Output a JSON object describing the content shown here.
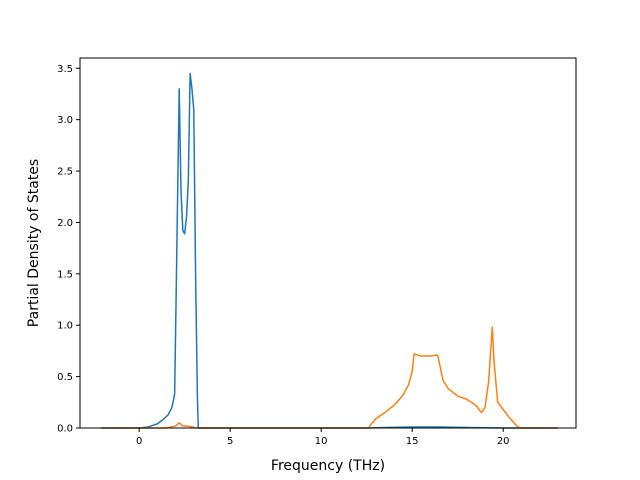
{
  "chart_data": {
    "type": "line",
    "title": "",
    "xlabel": "Frequency (THz)",
    "ylabel": "Partial Density of States",
    "xlim": [
      -3.25,
      24.0
    ],
    "ylim": [
      0,
      3.6
    ],
    "xticks": [
      0,
      5,
      10,
      15,
      20
    ],
    "yticks": [
      0.0,
      0.5,
      1.0,
      1.5,
      2.0,
      2.5,
      3.0,
      3.5
    ],
    "xtick_labels": [
      "0",
      "5",
      "10",
      "15",
      "20"
    ],
    "ytick_labels": [
      "0.0",
      "0.5",
      "1.0",
      "1.5",
      "2.0",
      "2.5",
      "3.0",
      "3.5"
    ],
    "grid": false,
    "legend": "none",
    "series": [
      {
        "color": "#1f77b4",
        "x": [
          -2.1,
          0.0,
          0.5,
          1.0,
          1.3,
          1.6,
          1.8,
          1.95,
          2.05,
          2.2,
          2.3,
          2.4,
          2.5,
          2.6,
          2.7,
          2.8,
          2.9,
          3.0,
          3.1,
          3.2,
          3.25,
          3.3,
          3.35,
          3.5,
          5.0,
          10.0,
          12.6,
          13.5,
          15.0,
          16.5,
          18.0,
          20.0,
          23.0
        ],
        "y": [
          0.0,
          0.0,
          0.01,
          0.04,
          0.08,
          0.13,
          0.2,
          0.33,
          1.5,
          3.3,
          2.3,
          1.92,
          1.89,
          2.05,
          2.4,
          3.45,
          3.3,
          3.1,
          1.5,
          0.3,
          0.0,
          0.0,
          0.0,
          0.0,
          0.0,
          0.0,
          0.0,
          0.005,
          0.01,
          0.01,
          0.005,
          0.0,
          0.0
        ]
      },
      {
        "color": "#ff7f0e",
        "x": [
          -2.1,
          1.5,
          2.0,
          2.2,
          2.4,
          2.6,
          3.2,
          3.5,
          5.0,
          10.0,
          12.6,
          12.8,
          13.0,
          13.5,
          14.0,
          14.5,
          14.8,
          15.0,
          15.1,
          15.5,
          16.0,
          16.4,
          16.7,
          17.0,
          17.5,
          18.0,
          18.5,
          18.8,
          19.0,
          19.2,
          19.4,
          19.5,
          19.7,
          20.0,
          20.3,
          20.6,
          20.8,
          21.0,
          23.0
        ],
        "y": [
          0.0,
          0.0,
          0.02,
          0.05,
          0.02,
          0.02,
          0.0,
          0.0,
          0.0,
          0.0,
          0.0,
          0.05,
          0.09,
          0.15,
          0.22,
          0.32,
          0.42,
          0.55,
          0.72,
          0.7,
          0.7,
          0.71,
          0.46,
          0.38,
          0.31,
          0.28,
          0.22,
          0.15,
          0.2,
          0.45,
          0.98,
          0.64,
          0.25,
          0.18,
          0.11,
          0.05,
          0.01,
          0.0,
          0.0
        ]
      }
    ]
  }
}
